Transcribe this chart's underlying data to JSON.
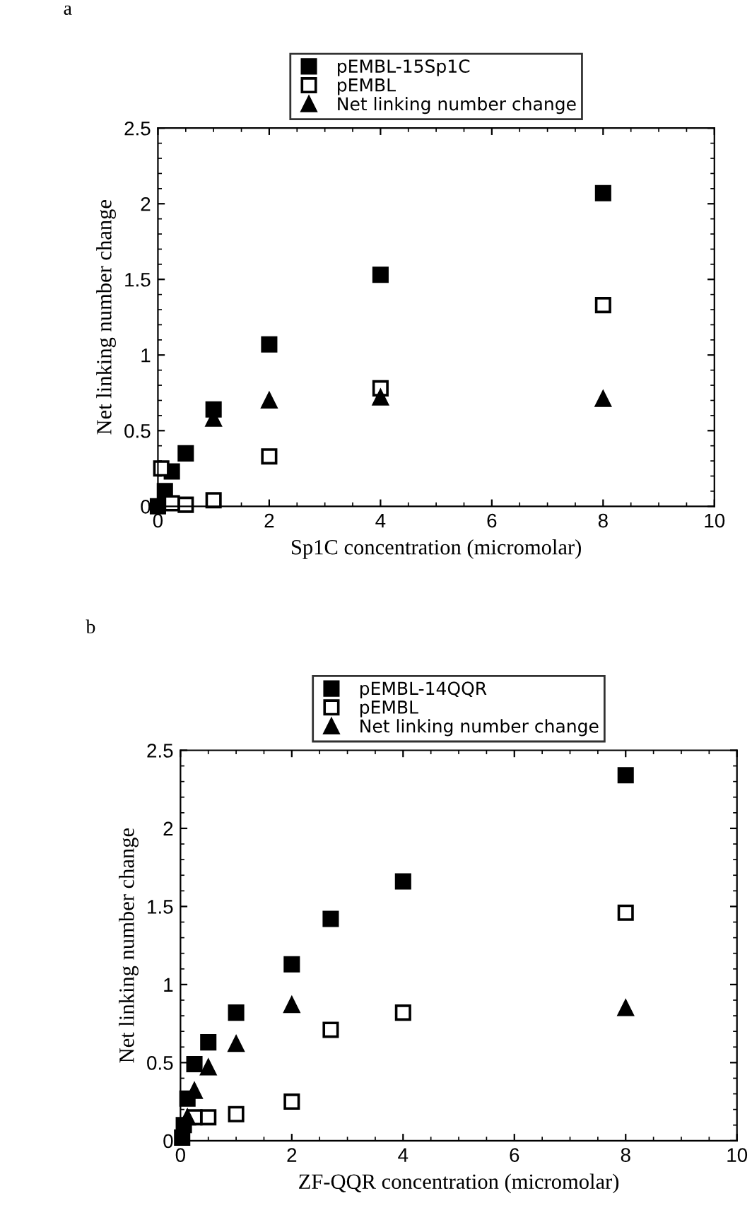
{
  "chart_data": [
    {
      "type": "scatter",
      "xlabel": "Sp1C concentration (micromolar)",
      "ylabel": "Net linking number change",
      "annotations": [
        "a"
      ],
      "xlim": [
        0,
        10
      ],
      "ylim": [
        0,
        2.5
      ],
      "xticks": [
        0,
        2,
        4,
        6,
        8,
        10
      ],
      "yticks": [
        0,
        0.5,
        1,
        1.5,
        2,
        2.5
      ],
      "legend": "top",
      "grid": false,
      "series": [
        {
          "name": "pEMBL-15Sp1C",
          "color": "#000000",
          "marker": "square",
          "x": [
            0,
            0.125,
            0.25,
            0.5,
            1,
            2,
            4,
            8
          ],
          "values": [
            0,
            0.1,
            0.23,
            0.35,
            0.64,
            1.07,
            1.53,
            2.07
          ]
        },
        {
          "name": "pEMBL",
          "color": "#ffffff",
          "marker": "square",
          "x": [
            0.06,
            0.25,
            0.5,
            1,
            2,
            4,
            8
          ],
          "values": [
            0.25,
            0.02,
            0.01,
            0.04,
            0.33,
            0.78,
            1.33
          ]
        },
        {
          "name": "Net linking number change",
          "color": "#000000",
          "marker": "triangle",
          "x": [
            1,
            2,
            4,
            8
          ],
          "values": [
            0.58,
            0.7,
            0.72,
            0.71
          ]
        }
      ]
    },
    {
      "type": "scatter",
      "xlabel": "ZF-QQR concentration (micromolar)",
      "ylabel": "Net linking number change",
      "annotations": [
        "b"
      ],
      "xlim": [
        0,
        10
      ],
      "ylim": [
        0,
        2.5
      ],
      "xticks": [
        0,
        2,
        4,
        6,
        8,
        10
      ],
      "yticks": [
        0,
        0.5,
        1,
        1.5,
        2,
        2.5
      ],
      "legend": "top",
      "grid": false,
      "series": [
        {
          "name": "pEMBL-14QQR",
          "color": "#000000",
          "marker": "square",
          "x": [
            0.03,
            0.06,
            0.125,
            0.25,
            0.5,
            1,
            2,
            2.7,
            4,
            8
          ],
          "values": [
            0.02,
            0.1,
            0.27,
            0.49,
            0.63,
            0.82,
            1.13,
            1.42,
            1.66,
            2.34
          ]
        },
        {
          "name": "pEMBL",
          "color": "#ffffff",
          "marker": "square",
          "x": [
            0.25,
            0.5,
            1,
            2,
            2.7,
            4,
            8
          ],
          "values": [
            0.15,
            0.15,
            0.17,
            0.25,
            0.71,
            0.82,
            1.46
          ]
        },
        {
          "name": "Net linking number change",
          "color": "#000000",
          "marker": "triangle",
          "x": [
            0.125,
            0.25,
            0.5,
            1,
            2,
            8
          ],
          "values": [
            0.15,
            0.32,
            0.47,
            0.62,
            0.87,
            0.85
          ]
        }
      ]
    }
  ]
}
